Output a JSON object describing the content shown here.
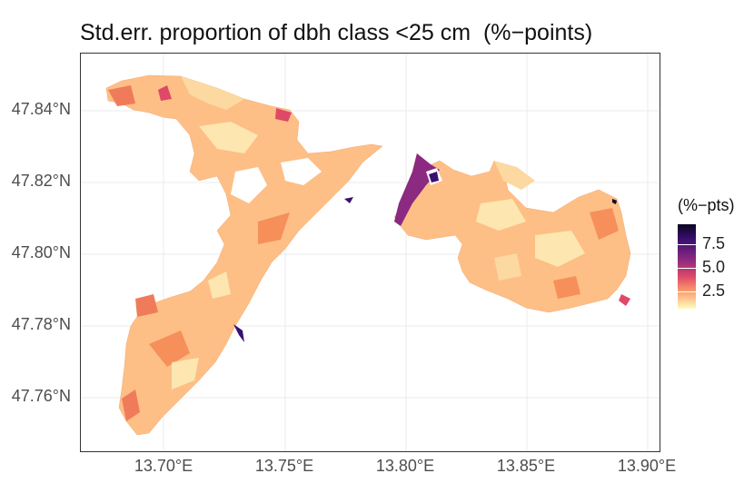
{
  "title": "Std.err. proportion of dbh class <25 cm  (%−points)",
  "axes": {
    "y_ticks": [
      "47.84°N",
      "47.82°N",
      "47.80°N",
      "47.78°N",
      "47.76°N"
    ],
    "x_ticks": [
      "13.70°E",
      "13.75°E",
      "13.80°E",
      "13.85°E",
      "13.90°E"
    ]
  },
  "legend": {
    "title": "(%−pts)",
    "labels": [
      "7.5",
      "5.0",
      "2.5"
    ]
  },
  "colors": {
    "low": "#fcfdbf",
    "mid_low": "#fdbb84",
    "mid": "#f68f5a",
    "mid_high": "#de4968",
    "high": "#8c2981",
    "very_high": "#3b0f70",
    "max": "#0a0522"
  }
}
